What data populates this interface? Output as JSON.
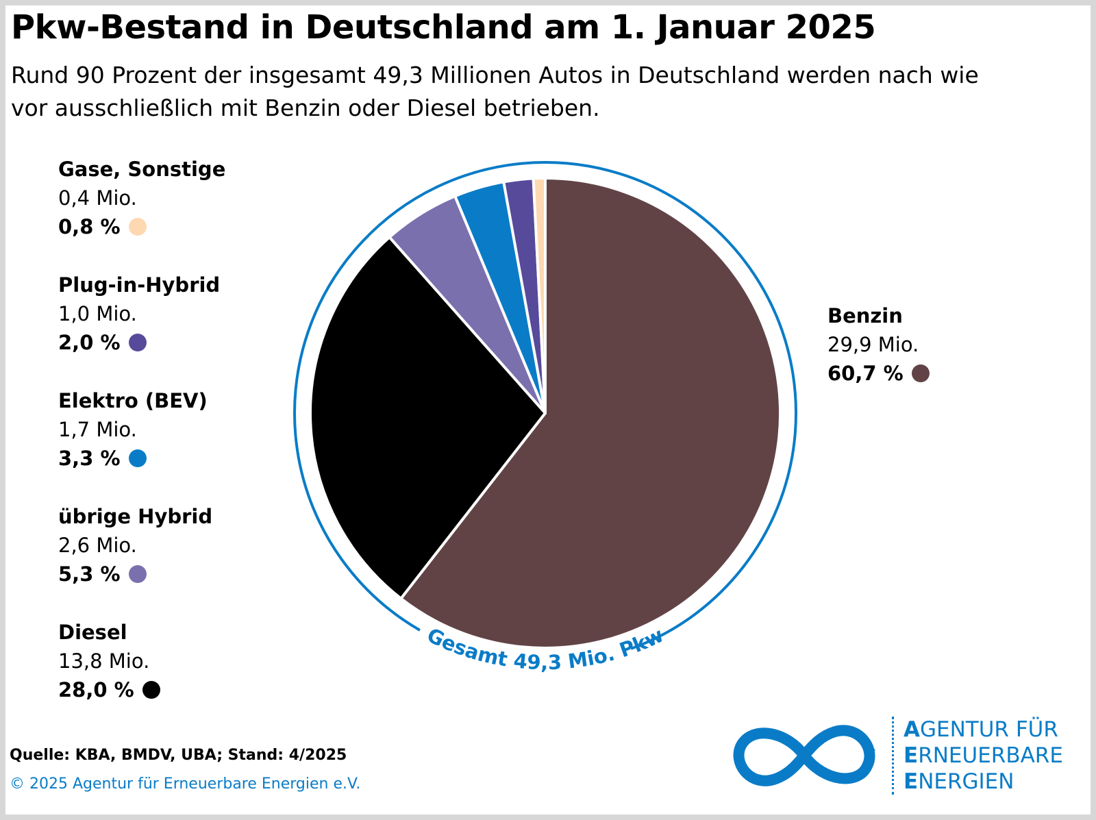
{
  "title": "Pkw-Bestand in Deutschland am 1. Januar 2025",
  "subtitle": "Rund 90 Prozent der insgesamt 49,3 Millionen Autos in Deutschland werden nach wie vor ausschließlich mit Benzin oder Diesel betrieben.",
  "chart_data": {
    "type": "pie",
    "unit": "Mio.",
    "total_label": "Gesamt 49,3 Mio. Pkw",
    "total": 49.3,
    "slices": [
      {
        "name": "Benzin",
        "amount": "29,9 Mio.",
        "value": 29.9,
        "percent_label": "60,7 %",
        "percent": 60.7,
        "color": "#614346"
      },
      {
        "name": "Diesel",
        "amount": "13,8 Mio.",
        "value": 13.8,
        "percent_label": "28,0 %",
        "percent": 28.0,
        "color": "#000000"
      },
      {
        "name": "übrige Hybrid",
        "amount": "2,6 Mio.",
        "value": 2.6,
        "percent_label": "5,3 %",
        "percent": 5.3,
        "color": "#7b70ae"
      },
      {
        "name": "Elektro (BEV)",
        "amount": "1,7 Mio.",
        "value": 1.7,
        "percent_label": "3,3 %",
        "percent": 3.3,
        "color": "#0a7cc7"
      },
      {
        "name": "Plug-in-Hybrid",
        "amount": "1,0 Mio.",
        "value": 1.0,
        "percent_label": "2,0 %",
        "percent": 2.0,
        "color": "#574a9a"
      },
      {
        "name": "Gase, Sonstige",
        "amount": "0,4 Mio.",
        "value": 0.4,
        "percent_label": "0,8 %",
        "percent": 0.8,
        "color": "#fdd8b0"
      }
    ],
    "ring_color": "#0a7cc7"
  },
  "legend_left": [
    {
      "name": "Gase, Sonstige",
      "amount": "0,4 Mio.",
      "pct": "0,8 %",
      "color": "#fdd8b0"
    },
    {
      "name": "Plug-in-Hybrid",
      "amount": "1,0 Mio.",
      "pct": "2,0 %",
      "color": "#574a9a"
    },
    {
      "name": "Elektro (BEV)",
      "amount": "1,7 Mio.",
      "pct": "3,3 %",
      "color": "#0a7cc7"
    },
    {
      "name": "übrige Hybrid",
      "amount": "2,6 Mio.",
      "pct": "5,3 %",
      "color": "#7b70ae"
    },
    {
      "name": "Diesel",
      "amount": "13,8 Mio.",
      "pct": "28,0 %",
      "color": "#000000"
    }
  ],
  "legend_right": {
    "name": "Benzin",
    "amount": "29,9 Mio.",
    "pct": "60,7 %",
    "color": "#614346"
  },
  "footer": {
    "source": "Quelle: KBA, BMDV, UBA; Stand: 4/2025",
    "copyright": "© 2025 Agentur für Erneuerbare Energien e.V."
  },
  "logo": {
    "line1_first": "A",
    "line1_rest": "GENTUR FÜR",
    "line2_first": "E",
    "line2_rest": "RNEUERBARE",
    "line3_first": "E",
    "line3_rest": "NERGIEN",
    "color": "#0a7cc7"
  }
}
